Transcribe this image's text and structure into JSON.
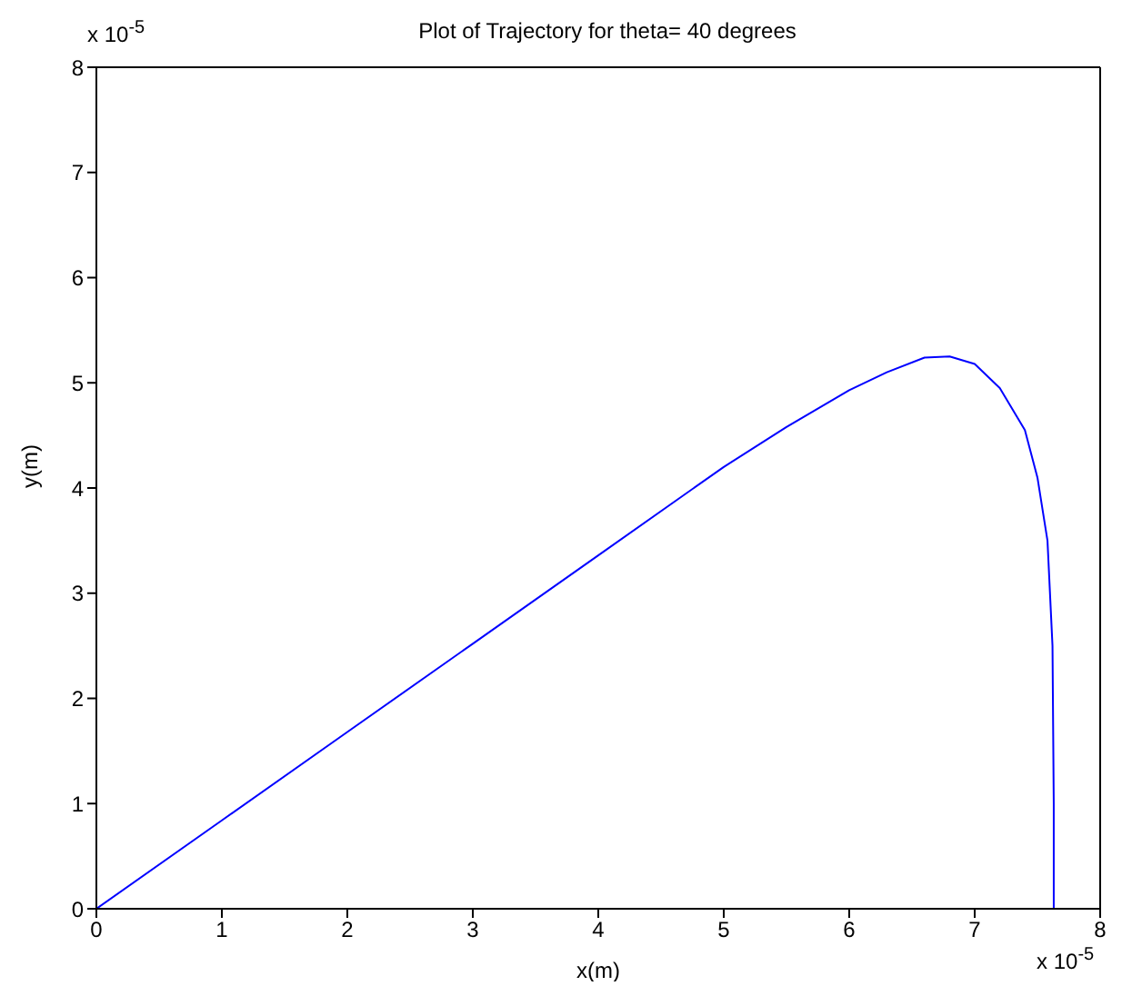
{
  "chart_data": {
    "type": "line",
    "title": "Plot of Trajectory for theta= 40 degrees",
    "xlabel": "x(m)",
    "ylabel": "y(m)",
    "annotations": [
      "x 10$^{-5}$",
      "x 10$^{-5}$"
    ],
    "marker": "none",
    "line_style": "solid",
    "xlim": [
      0,
      8
    ],
    "ylim": [
      0,
      8
    ],
    "xticks": [
      0,
      1,
      2,
      3,
      4,
      5,
      6,
      7,
      8
    ],
    "yticks": [
      0,
      1,
      2,
      3,
      4,
      5,
      6,
      7,
      8
    ],
    "series": [
      {
        "color": "#0000ff",
        "x": [
          0,
          1,
          2,
          3,
          4,
          5,
          5.5,
          6,
          6.3,
          6.6,
          6.8,
          7,
          7.2,
          7.4,
          7.5,
          7.58,
          7.62,
          7.63,
          7.63
        ],
        "values": [
          0,
          0.84,
          1.68,
          2.52,
          3.36,
          4.2,
          4.58,
          4.93,
          5.1,
          5.24,
          5.25,
          5.18,
          4.95,
          4.55,
          4.1,
          3.5,
          2.5,
          1,
          0
        ]
      }
    ]
  }
}
